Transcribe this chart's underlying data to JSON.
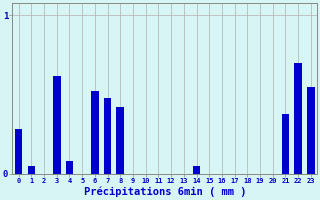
{
  "categories": [
    0,
    1,
    2,
    3,
    4,
    5,
    6,
    7,
    8,
    9,
    10,
    11,
    12,
    13,
    14,
    15,
    16,
    17,
    18,
    19,
    20,
    21,
    22,
    23
  ],
  "values": [
    0.28,
    0.05,
    0.0,
    0.62,
    0.08,
    0.0,
    0.52,
    0.48,
    0.42,
    0.0,
    0.0,
    0.0,
    0.0,
    0.0,
    0.05,
    0.0,
    0.0,
    0.0,
    0.0,
    0.0,
    0.0,
    0.38,
    0.7,
    0.55
  ],
  "bar_color": "#0000cc",
  "background_color": "#d8f5f5",
  "grid_color": "#b0b0b0",
  "xlabel": "Précipitations 6min ( mm )",
  "xlabel_color": "#0000cc",
  "ytick_labels": [
    "0",
    "1"
  ],
  "ytick_values": [
    0,
    1
  ],
  "ylim": [
    0,
    1.08
  ],
  "xlim": [
    -0.5,
    23.5
  ],
  "tick_color": "#0000cc",
  "axis_color": "#888888"
}
